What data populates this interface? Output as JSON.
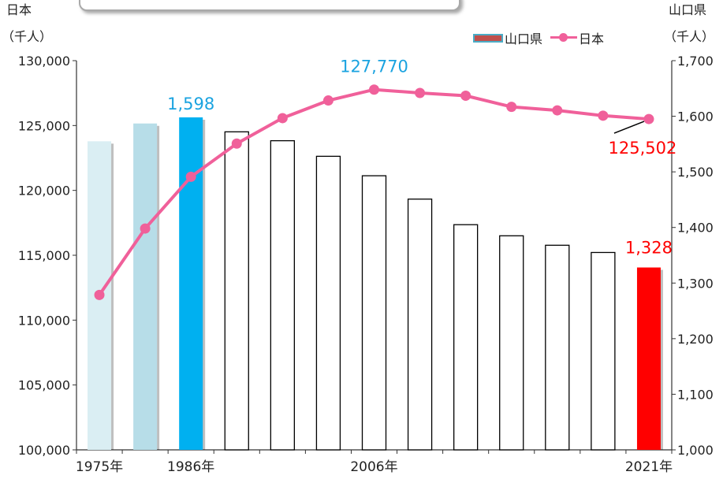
{
  "header": {
    "left_axis_unit_line1": "日本",
    "left_axis_unit_line2": "（千人）",
    "right_axis_unit_line1": "山口県",
    "right_axis_unit_line2": "（千人）"
  },
  "legend": {
    "bar_label": "山口県",
    "line_label": "日本"
  },
  "colors": {
    "line": "#f0609a",
    "bar_1975": "#daeef3",
    "bar_1980": "#b7dde8",
    "bar_1986": "#00b0f0",
    "bar_default": "#ffffff",
    "bar_2021": "#ff0000",
    "label_blue": "#1aa3e0",
    "label_red": "#ff0000"
  },
  "chart_data": {
    "type": "bar+line",
    "x_ticks": [
      {
        "index": 0,
        "label": "1975年"
      },
      {
        "index": 2,
        "label": "1986年"
      },
      {
        "index": 6,
        "label": "2006年"
      },
      {
        "index": 12,
        "label": "2021年"
      }
    ],
    "left_axis": {
      "min": 100000,
      "max": 130000,
      "step": 5000,
      "tick_labels": [
        "100,000",
        "105,000",
        "110,000",
        "115,000",
        "120,000",
        "125,000",
        "130,000"
      ]
    },
    "right_axis": {
      "min": 1000,
      "max": 1700,
      "step": 100,
      "tick_labels": [
        "1,000",
        "1,100",
        "1,200",
        "1,300",
        "1,400",
        "1,500",
        "1,600",
        "1,700"
      ]
    },
    "series": [
      {
        "name": "山口県",
        "axis": "right",
        "kind": "bar",
        "values": [
          1555,
          1587,
          1598,
          1572,
          1556,
          1528,
          1493,
          1451,
          1405,
          1385,
          1368,
          1355,
          1328
        ]
      },
      {
        "name": "日本",
        "axis": "left",
        "kind": "line",
        "values": [
          111940,
          117060,
          121050,
          123610,
          125570,
          126930,
          127770,
          127510,
          127300,
          126440,
          126170,
          125760,
          125502
        ]
      }
    ],
    "annotations": [
      {
        "series": "山口県",
        "index": 2,
        "text": "1,598",
        "color": "#1aa3e0"
      },
      {
        "series": "日本",
        "index": 6,
        "text": "127,770",
        "color": "#1aa3e0"
      },
      {
        "series": "日本",
        "index": 12,
        "text": "125,502",
        "color": "#ff0000"
      },
      {
        "series": "山口県",
        "index": 12,
        "text": "1,328",
        "color": "#ff0000"
      }
    ]
  }
}
